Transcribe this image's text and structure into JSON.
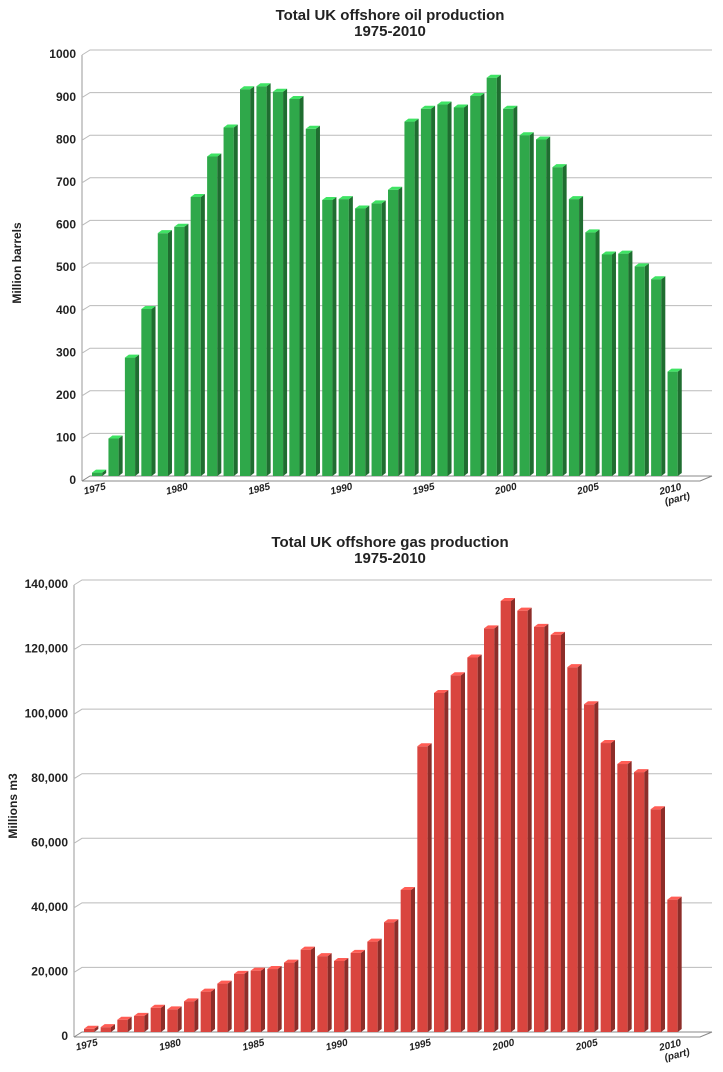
{
  "chart_data": [
    {
      "type": "bar",
      "title": "Total UK offshore oil production",
      "subtitle": "1975-2010",
      "y_label": "Million barrels",
      "categories": [
        "1975",
        null,
        null,
        null,
        null,
        "1980",
        null,
        null,
        null,
        null,
        "1985",
        null,
        null,
        null,
        null,
        "1990",
        null,
        null,
        null,
        null,
        "1995",
        null,
        null,
        null,
        null,
        "2000",
        null,
        null,
        null,
        null,
        "2005",
        null,
        null,
        null,
        null,
        "2010 (part)"
      ],
      "values": [
        8,
        88,
        278,
        392,
        570,
        585,
        655,
        750,
        818,
        908,
        915,
        902,
        885,
        815,
        648,
        650,
        628,
        640,
        672,
        832,
        862,
        872,
        865,
        892,
        935,
        862,
        800,
        790,
        725,
        650,
        572,
        520,
        522,
        492,
        462,
        245
      ],
      "color": "#2fa84a",
      "ylim": [
        0,
        1000
      ],
      "yticks": [
        0,
        100,
        200,
        300,
        400,
        500,
        600,
        700,
        800,
        900,
        1000
      ],
      "grid": true
    },
    {
      "type": "bar",
      "title": "Total UK offshore gas production",
      "subtitle": "1975-2010",
      "y_label": "Millions m3",
      "categories": [
        "1975",
        null,
        null,
        null,
        null,
        "1980",
        null,
        null,
        null,
        null,
        "1985",
        null,
        null,
        null,
        null,
        "1990",
        null,
        null,
        null,
        null,
        "1995",
        null,
        null,
        null,
        null,
        "2000",
        null,
        null,
        null,
        null,
        "2005",
        null,
        null,
        null,
        null,
        "2010 (part)"
      ],
      "values": [
        1000,
        1500,
        3800,
        5000,
        7500,
        7000,
        9500,
        12500,
        15000,
        18000,
        19000,
        19500,
        21500,
        25500,
        23500,
        22000,
        24500,
        28000,
        34000,
        44000,
        88500,
        105000,
        110500,
        116000,
        125000,
        133500,
        130500,
        125500,
        123000,
        113000,
        101500,
        89500,
        83000,
        80500,
        69000,
        41000
      ],
      "color": "#d9453f",
      "ylim": [
        0,
        140000
      ],
      "yticks": [
        0,
        {
          "value": 20000,
          "label": "20,000"
        },
        {
          "value": 40000,
          "label": "40,000"
        },
        {
          "value": 60000,
          "label": "60,000"
        },
        {
          "value": 80000,
          "label": "80,000"
        },
        {
          "value": 100000,
          "label": "100,000"
        },
        {
          "value": 120000,
          "label": "120,000"
        },
        {
          "value": 140000,
          "label": "140,000"
        }
      ],
      "grid": true
    }
  ]
}
